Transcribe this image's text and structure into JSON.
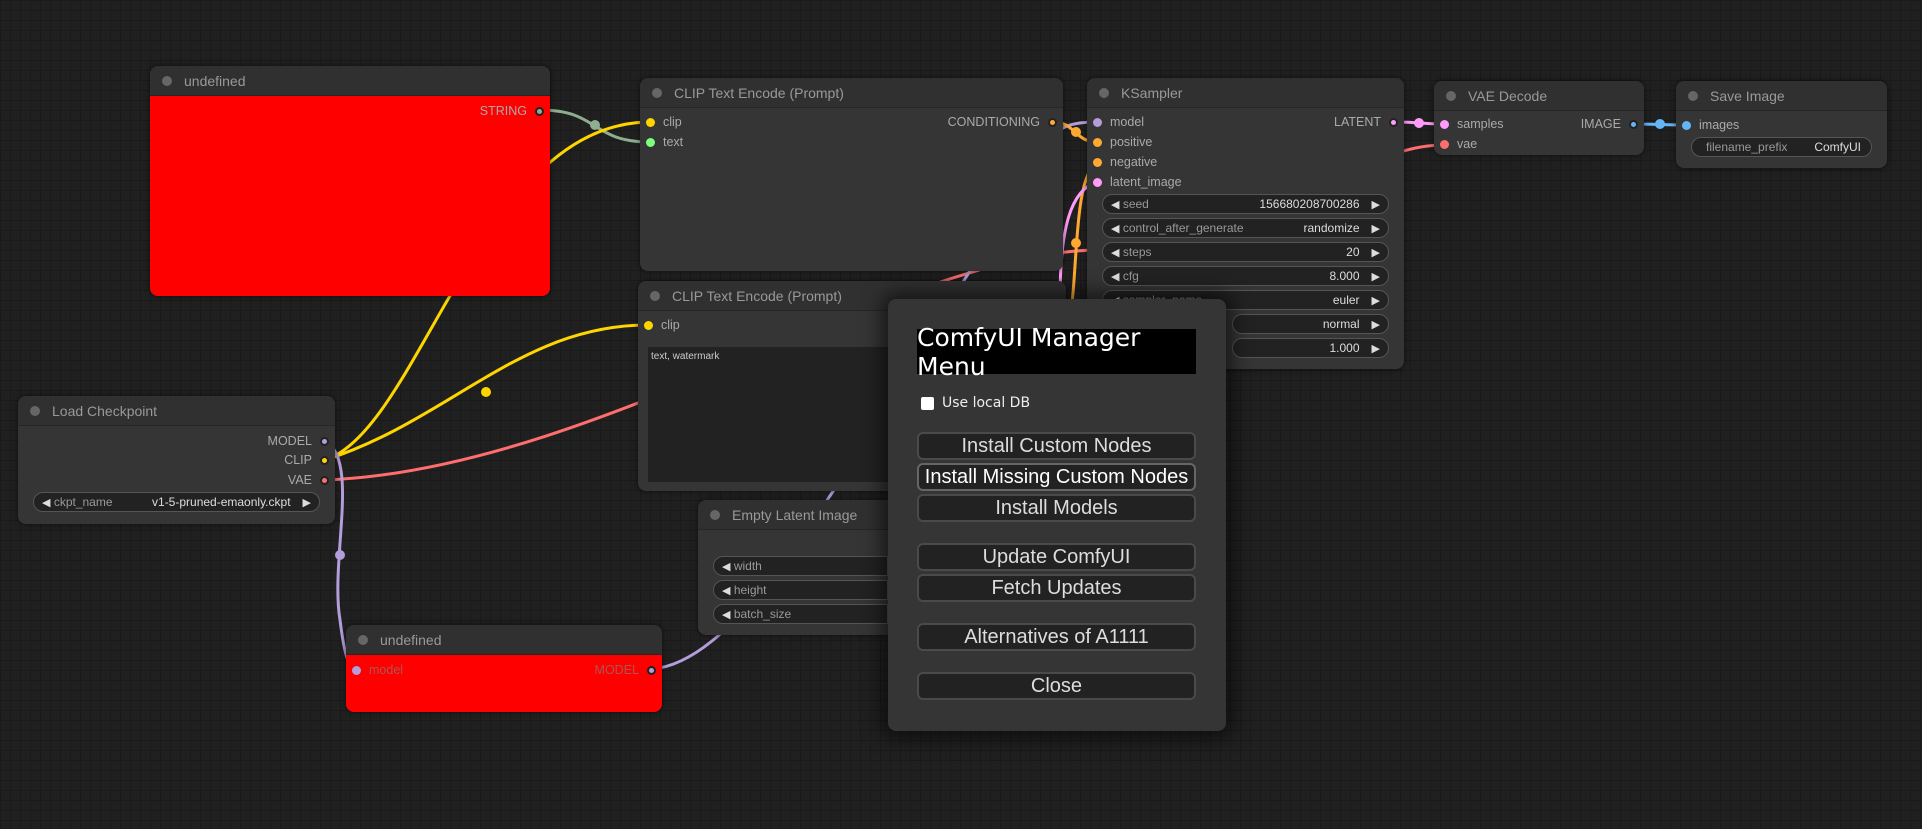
{
  "colors": {
    "clip": "#ffd500",
    "vae": "#ff6e6e",
    "model": "#b39ddb",
    "conditioning": "#ffa931",
    "latent": "#ff9cf9",
    "image": "#64b5f6",
    "string": "#8fae8f"
  },
  "nodes": {
    "undefined_top": {
      "title": "undefined",
      "outputs": [
        "STRING"
      ]
    },
    "clip_encode_1": {
      "title": "CLIP Text Encode (Prompt)",
      "inputs": [
        "clip",
        "text"
      ],
      "outputs": [
        "CONDITIONING"
      ]
    },
    "ksampler": {
      "title": "KSampler",
      "inputs": [
        "model",
        "positive",
        "negative",
        "latent_image"
      ],
      "outputs": [
        "LATENT"
      ],
      "widgets": [
        {
          "label": "seed",
          "value": "156680208700286"
        },
        {
          "label": "control_after_generate",
          "value": "randomize"
        },
        {
          "label": "steps",
          "value": "20"
        },
        {
          "label": "cfg",
          "value": "8.000"
        },
        {
          "label": "sampler_name",
          "value": "euler"
        },
        {
          "label": "",
          "value": "normal"
        },
        {
          "label": "",
          "value": "1.000"
        }
      ]
    },
    "vae_decode": {
      "title": "VAE Decode",
      "inputs": [
        "samples",
        "vae"
      ],
      "outputs": [
        "IMAGE"
      ]
    },
    "save_image": {
      "title": "Save Image",
      "inputs": [
        "images"
      ],
      "widget": {
        "label": "filename_prefix",
        "value": "ComfyUI"
      }
    },
    "clip_encode_2": {
      "title": "CLIP Text Encode (Prompt)",
      "inputs": [
        "clip"
      ],
      "text": "text, watermark"
    },
    "load_checkpoint": {
      "title": "Load Checkpoint",
      "outputs": [
        "MODEL",
        "CLIP",
        "VAE"
      ],
      "widget": {
        "label": "ckpt_name",
        "value": "v1-5-pruned-emaonly.ckpt"
      }
    },
    "empty_latent": {
      "title": "Empty Latent Image",
      "widgets": [
        "width",
        "height",
        "batch_size"
      ]
    },
    "undefined_bottom": {
      "title": "undefined",
      "inputs": [
        "model"
      ],
      "outputs": [
        "MODEL"
      ]
    }
  },
  "dialog": {
    "title": "ComfyUI Manager Menu",
    "use_local_db": {
      "label": "Use local DB",
      "checked": false
    },
    "buttons": [
      "Install Custom Nodes",
      "Install Missing Custom Nodes",
      "Install Models",
      "Update ComfyUI",
      "Fetch Updates",
      "Alternatives of A1111",
      "Close"
    ]
  }
}
